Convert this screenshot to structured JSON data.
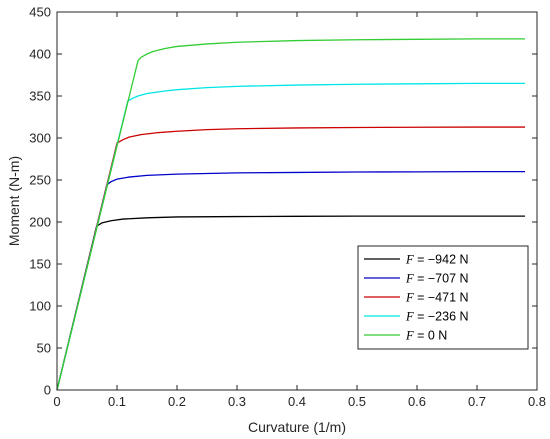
{
  "chart_data": {
    "type": "line",
    "title": "",
    "xlabel": "Curvature (1/m)",
    "ylabel": "Moment (N-m)",
    "xlim": [
      0,
      0.8
    ],
    "ylim": [
      0,
      450
    ],
    "xticks": [
      "0",
      "0.1",
      "0.2",
      "0.3",
      "0.4",
      "0.5",
      "0.6",
      "0.7",
      "0.8"
    ],
    "yticks": [
      "0",
      "50",
      "100",
      "150",
      "200",
      "250",
      "300",
      "350",
      "400",
      "450"
    ],
    "grid": false,
    "legend_position": "bottom-right",
    "series": [
      {
        "name": "F = −942 N",
        "legend_var": "F",
        "legend_rest": " = −942 N",
        "color": "#000000",
        "x": [
          0,
          0.066,
          0.075,
          0.09,
          0.11,
          0.15,
          0.2,
          0.3,
          0.4,
          0.5,
          0.6,
          0.7,
          0.78
        ],
        "y": [
          0,
          195,
          199,
          201.5,
          203.5,
          205,
          206,
          206.5,
          206.8,
          207,
          207,
          207,
          207
        ]
      },
      {
        "name": "F = −707 N",
        "legend_var": "F",
        "legend_rest": " = −707 N",
        "color": "#0000cc",
        "x": [
          0,
          0.083,
          0.09,
          0.1,
          0.12,
          0.15,
          0.2,
          0.3,
          0.4,
          0.5,
          0.6,
          0.7,
          0.78
        ],
        "y": [
          0,
          244,
          248,
          251,
          253.5,
          255.5,
          257,
          258.5,
          259,
          259.5,
          259.7,
          260,
          260
        ]
      },
      {
        "name": "F = −471 N",
        "legend_var": "F",
        "legend_rest": " = −471 N",
        "color": "#cc0000",
        "x": [
          0,
          0.1,
          0.11,
          0.12,
          0.14,
          0.17,
          0.2,
          0.25,
          0.3,
          0.4,
          0.5,
          0.6,
          0.7,
          0.78
        ],
        "y": [
          0,
          294,
          298,
          301,
          304,
          306.5,
          308,
          310,
          311,
          312,
          312.5,
          312.8,
          313,
          313
        ]
      },
      {
        "name": "F = −236 N",
        "legend_var": "F",
        "legend_rest": " = −236 N",
        "color": "#00e6e6",
        "x": [
          0,
          0.118,
          0.125,
          0.135,
          0.15,
          0.18,
          0.2,
          0.25,
          0.3,
          0.4,
          0.5,
          0.6,
          0.7,
          0.78
        ],
        "y": [
          0,
          344,
          347,
          350,
          353,
          356,
          357.5,
          360,
          361.5,
          363,
          364,
          364.5,
          365,
          365
        ]
      },
      {
        "name": "F = 0 N",
        "legend_var": "F",
        "legend_rest": " = 0 N",
        "color": "#33cc33",
        "x": [
          0,
          0.135,
          0.14,
          0.15,
          0.16,
          0.18,
          0.2,
          0.25,
          0.3,
          0.4,
          0.5,
          0.6,
          0.7,
          0.78
        ],
        "y": [
          0,
          392,
          396,
          400,
          403,
          406.5,
          409,
          412,
          414,
          416,
          417,
          417.5,
          418,
          418
        ]
      }
    ]
  }
}
